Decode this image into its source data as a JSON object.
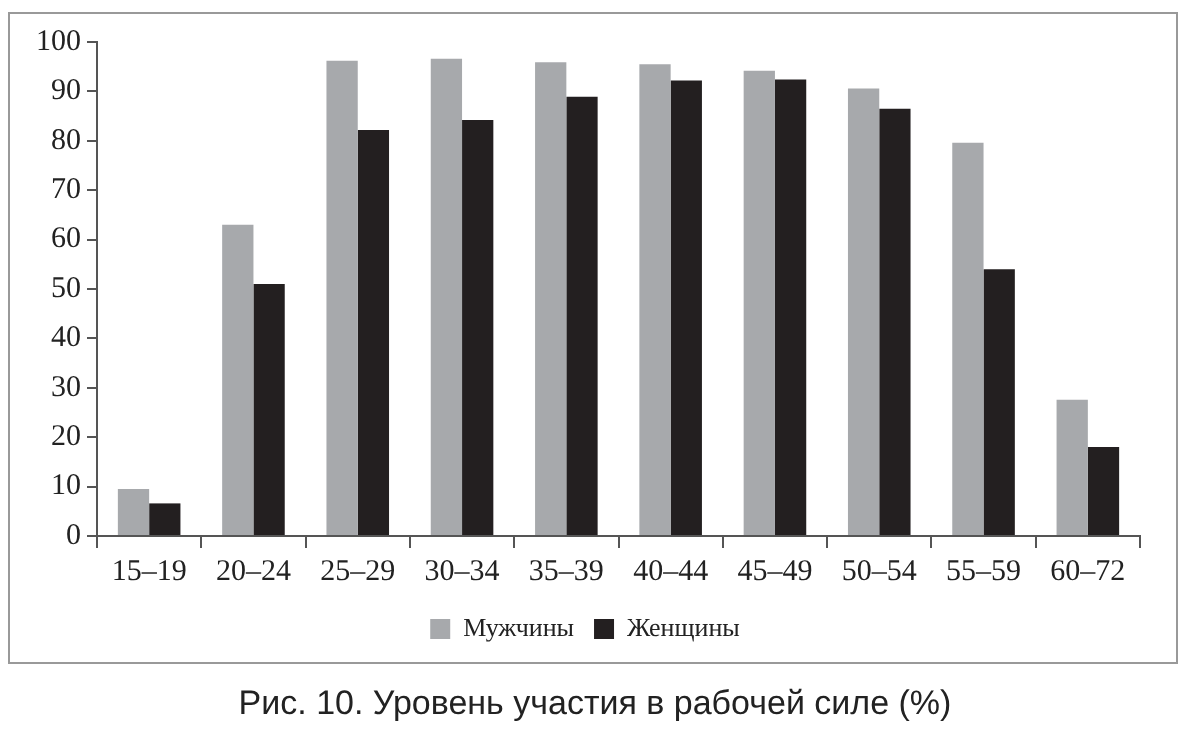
{
  "chart_data": {
    "type": "bar",
    "title": "Рис. 10. Уровень участия в рабочей силе (%)",
    "categories": [
      "15–19",
      "20–24",
      "25–29",
      "30–34",
      "35–39",
      "40–44",
      "45–49",
      "50–54",
      "55–59",
      "60–72"
    ],
    "series": [
      {
        "name": "Мужчины",
        "color": "#a7a9ac",
        "values": [
          9.5,
          63,
          96.2,
          96.6,
          95.9,
          95.5,
          94.2,
          90.6,
          79.6,
          27.6
        ]
      },
      {
        "name": "Женщины",
        "color": "#231f20",
        "values": [
          6.6,
          51,
          82.2,
          84.2,
          88.9,
          92.2,
          92.4,
          86.5,
          54,
          18
        ]
      }
    ],
    "ylim": [
      0,
      100
    ],
    "yticks": [
      0,
      10,
      20,
      30,
      40,
      50,
      60,
      70,
      80,
      90,
      100
    ],
    "grid": false,
    "legend": "bottom"
  }
}
